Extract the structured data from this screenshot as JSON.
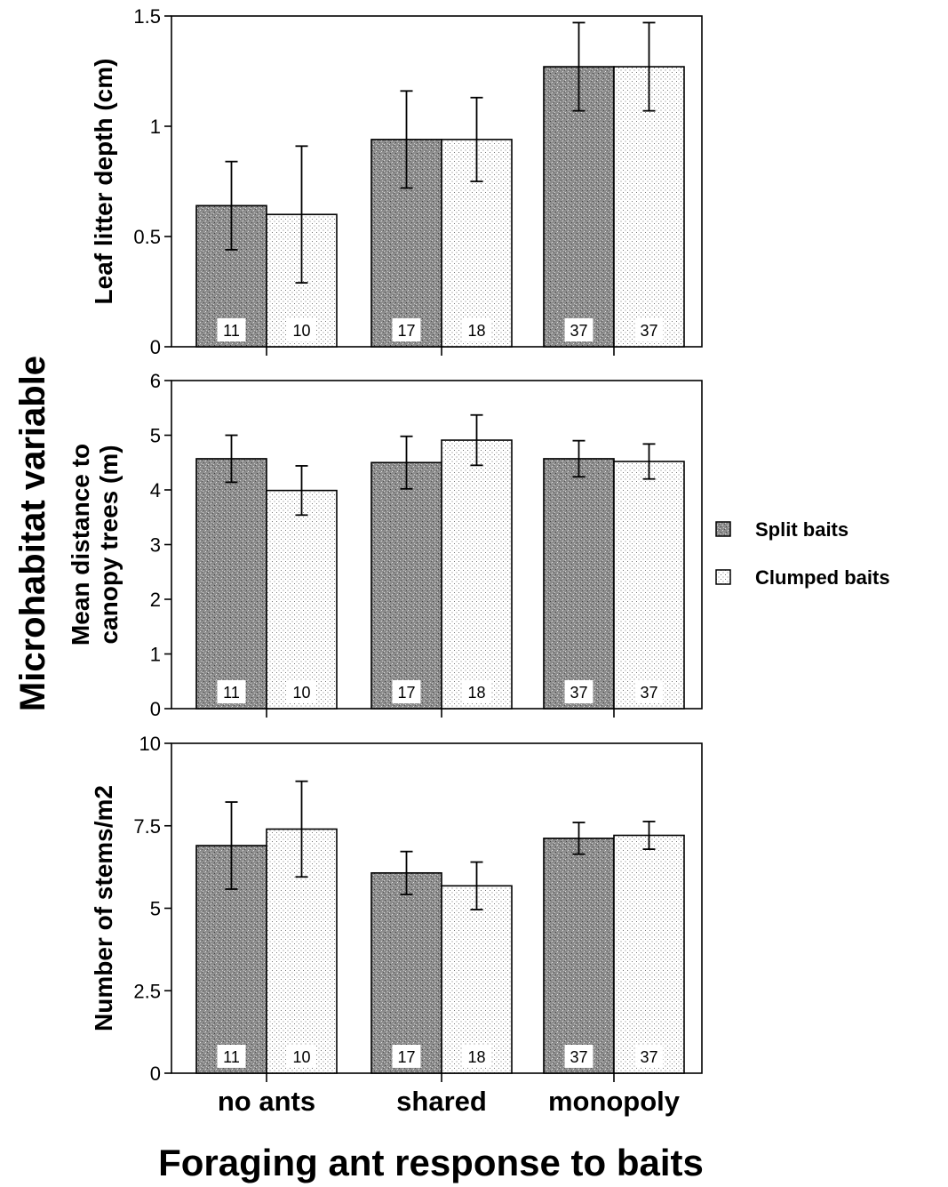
{
  "figure": {
    "y_super_label": "Microhabitat variable",
    "x_title": "Foraging ant response to baits"
  },
  "legend": {
    "position": "right",
    "items": [
      {
        "label": "Split baits",
        "pattern": "dense-gray"
      },
      {
        "label": "Clumped baits",
        "pattern": "dotted"
      }
    ]
  },
  "chart_data": [
    {
      "type": "bar",
      "ylabel": "Leaf litter depth (cm)",
      "xlabel": "",
      "ylim": [
        0,
        1.5
      ],
      "yticks": [
        {
          "value": 0,
          "label": "0"
        },
        {
          "value": 0.5,
          "label": "0.5"
        },
        {
          "value": 1,
          "label": "1"
        },
        {
          "value": 1.5,
          "label": "1.5"
        }
      ],
      "categories": [
        "no ants",
        "shared",
        "monopoly"
      ],
      "series": [
        {
          "name": "Split baits",
          "values": [
            0.64,
            0.94,
            1.27
          ],
          "errors": [
            0.2,
            0.22,
            0.2
          ],
          "n": [
            "11",
            "17",
            "37"
          ]
        },
        {
          "name": "Clumped baits",
          "values": [
            0.6,
            0.94,
            1.27
          ],
          "errors": [
            0.31,
            0.19,
            0.2
          ],
          "n": [
            "10",
            "18",
            "37"
          ]
        }
      ],
      "show_category_labels": false
    },
    {
      "type": "bar",
      "ylabel": "Mean distance to canopy trees (m)",
      "ylabel_lines": [
        "Mean distance to",
        "canopy trees (m)"
      ],
      "xlabel": "",
      "ylim": [
        0,
        6
      ],
      "yticks": [
        {
          "value": 0,
          "label": "0"
        },
        {
          "value": 1,
          "label": "1"
        },
        {
          "value": 2,
          "label": "2"
        },
        {
          "value": 3,
          "label": "3"
        },
        {
          "value": 4,
          "label": "4"
        },
        {
          "value": 5,
          "label": "5"
        },
        {
          "value": 6,
          "label": "6"
        }
      ],
      "categories": [
        "no ants",
        "shared",
        "monopoly"
      ],
      "series": [
        {
          "name": "Split baits",
          "values": [
            4.57,
            4.5,
            4.57
          ],
          "errors": [
            0.43,
            0.48,
            0.33
          ],
          "n": [
            "11",
            "17",
            "37"
          ]
        },
        {
          "name": "Clumped baits",
          "values": [
            3.99,
            4.91,
            4.52
          ],
          "errors": [
            0.45,
            0.46,
            0.32
          ],
          "n": [
            "10",
            "18",
            "37"
          ]
        }
      ],
      "show_category_labels": false
    },
    {
      "type": "bar",
      "ylabel": "Number of stems/m2",
      "xlabel": "",
      "ylim": [
        0,
        10
      ],
      "yticks": [
        {
          "value": 0,
          "label": "0"
        },
        {
          "value": 2.5,
          "label": "2.5"
        },
        {
          "value": 5,
          "label": "5"
        },
        {
          "value": 7.5,
          "label": "7.5"
        },
        {
          "value": 10,
          "label": "10"
        }
      ],
      "categories": [
        "no ants",
        "shared",
        "monopoly"
      ],
      "series": [
        {
          "name": "Split baits",
          "values": [
            6.9,
            6.07,
            7.12
          ],
          "errors": [
            1.32,
            0.65,
            0.48
          ],
          "n": [
            "11",
            "17",
            "37"
          ]
        },
        {
          "name": "Clumped baits",
          "values": [
            7.4,
            5.68,
            7.21
          ],
          "errors": [
            1.45,
            0.72,
            0.42
          ],
          "n": [
            "10",
            "18",
            "37"
          ]
        }
      ],
      "show_category_labels": true
    }
  ]
}
